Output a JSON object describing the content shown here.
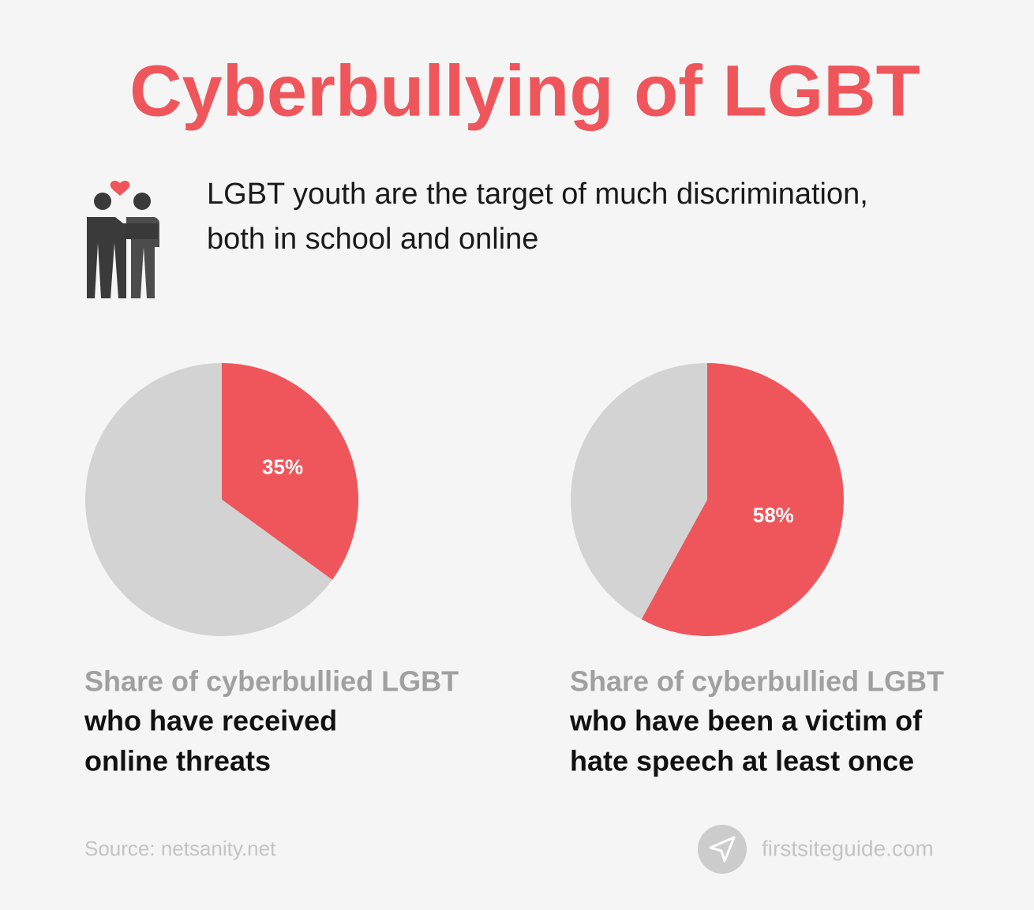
{
  "title": "Cyberbullying of LGBT",
  "subtitle_lines": [
    "LGBT youth are the target of much discrimination,",
    "both in school and online"
  ],
  "chart_data": [
    {
      "type": "pie",
      "values": [
        35,
        65
      ],
      "value_labels": [
        "35%",
        null
      ],
      "colors": [
        "#ef565b",
        "#d3d3d3"
      ],
      "caption_lead": "Share of cyberbullied LGBT",
      "caption_lines": [
        "who have received",
        "online threats"
      ]
    },
    {
      "type": "pie",
      "values": [
        58,
        42
      ],
      "value_labels": [
        "58%",
        null
      ],
      "colors": [
        "#ef565b",
        "#d3d3d3"
      ],
      "caption_lead": "Share of cyberbullied LGBT",
      "caption_lines": [
        "who have been a victim of",
        "hate speech at least once"
      ]
    }
  ],
  "source": "Source: netsanity.net",
  "brand": "firstsiteguide.com"
}
